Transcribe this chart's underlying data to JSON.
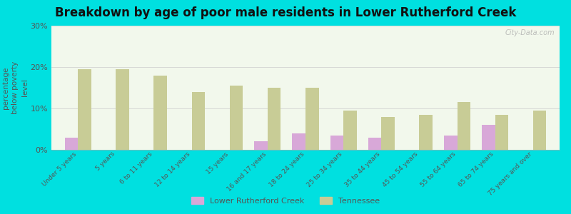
{
  "title": "Breakdown by age of poor male residents in Lower Rutherford Creek",
  "ylabel": "percentage\nbelow poverty\nlevel",
  "categories": [
    "Under 5 years",
    "5 years",
    "6 to 11 years",
    "12 to 14 years",
    "15 years",
    "16 and 17 years",
    "18 to 24 years",
    "25 to 34 years",
    "35 to 44 years",
    "45 to 54 years",
    "55 to 64 years",
    "65 to 74 years",
    "75 years and over"
  ],
  "local_values": [
    3.0,
    0.0,
    0.0,
    0.0,
    0.0,
    2.0,
    4.0,
    3.5,
    3.0,
    0.0,
    3.5,
    6.0,
    0.0
  ],
  "state_values": [
    19.5,
    19.5,
    18.0,
    14.0,
    15.5,
    15.0,
    15.0,
    9.5,
    8.0,
    8.5,
    11.5,
    8.5,
    9.5
  ],
  "local_color": "#d8a8d8",
  "state_color": "#c8cc96",
  "local_label": "Lower Rutherford Creek",
  "state_label": "Tennessee",
  "ylim": [
    0,
    30
  ],
  "yticks": [
    0,
    10,
    20,
    30
  ],
  "ytick_labels": [
    "0%",
    "10%",
    "20%",
    "30%"
  ],
  "plot_area_bg": "#f2f8ec",
  "outer_bg": "#00e0e0",
  "title_fontsize": 12,
  "bar_width": 0.35,
  "watermark": "City-Data.com"
}
